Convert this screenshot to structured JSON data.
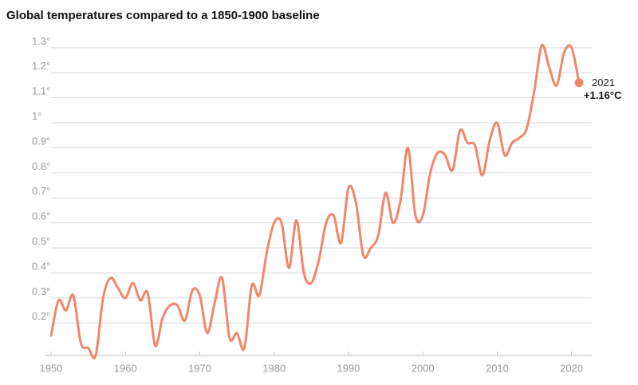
{
  "chart_data": {
    "type": "line",
    "title": "Global temperatures compared to a 1850-1900 baseline",
    "xlabel": "",
    "ylabel": "",
    "xlim": [
      1950,
      2021
    ],
    "ylim": [
      0.07,
      1.36
    ],
    "grid": true,
    "x_ticks": [
      {
        "value": 1950,
        "label": "1950"
      },
      {
        "value": 1960,
        "label": "1960"
      },
      {
        "value": 1970,
        "label": "1970"
      },
      {
        "value": 1980,
        "label": "1980"
      },
      {
        "value": 1990,
        "label": "1990"
      },
      {
        "value": 2000,
        "label": "2000"
      },
      {
        "value": 2010,
        "label": "2010"
      },
      {
        "value": 2020,
        "label": "2020"
      }
    ],
    "y_ticks": [
      {
        "value": 0.2,
        "label": "0.2°"
      },
      {
        "value": 0.3,
        "label": "0.3°"
      },
      {
        "value": 0.4,
        "label": "0.4°"
      },
      {
        "value": 0.5,
        "label": "0.5°"
      },
      {
        "value": 0.6,
        "label": "0.6°"
      },
      {
        "value": 0.7,
        "label": "0.7°"
      },
      {
        "value": 0.8,
        "label": "0.8°"
      },
      {
        "value": 0.9,
        "label": "0.9°"
      },
      {
        "value": 1.0,
        "label": "1°"
      },
      {
        "value": 1.1,
        "label": "1.1°"
      },
      {
        "value": 1.2,
        "label": "1.2°"
      },
      {
        "value": 1.3,
        "label": "1.3°"
      }
    ],
    "series": [
      {
        "color": "#f0876a",
        "x": [
          1950,
          1951,
          1952,
          1953,
          1954,
          1955,
          1956,
          1957,
          1958,
          1959,
          1960,
          1961,
          1962,
          1963,
          1964,
          1965,
          1966,
          1967,
          1968,
          1969,
          1970,
          1971,
          1972,
          1973,
          1974,
          1975,
          1976,
          1977,
          1978,
          1979,
          1980,
          1981,
          1982,
          1983,
          1984,
          1985,
          1986,
          1987,
          1988,
          1989,
          1990,
          1991,
          1992,
          1993,
          1994,
          1995,
          1996,
          1997,
          1998,
          1999,
          2000,
          2001,
          2002,
          2003,
          2004,
          2005,
          2006,
          2007,
          2008,
          2009,
          2010,
          2011,
          2012,
          2013,
          2014,
          2015,
          2016,
          2017,
          2018,
          2019,
          2020,
          2021
        ],
        "y": [
          0.15,
          0.29,
          0.25,
          0.31,
          0.12,
          0.1,
          0.07,
          0.3,
          0.38,
          0.34,
          0.3,
          0.36,
          0.29,
          0.32,
          0.11,
          0.22,
          0.27,
          0.27,
          0.21,
          0.33,
          0.31,
          0.16,
          0.28,
          0.38,
          0.14,
          0.16,
          0.1,
          0.35,
          0.31,
          0.48,
          0.6,
          0.6,
          0.42,
          0.61,
          0.4,
          0.36,
          0.45,
          0.6,
          0.63,
          0.52,
          0.74,
          0.68,
          0.47,
          0.5,
          0.55,
          0.72,
          0.6,
          0.69,
          0.9,
          0.63,
          0.63,
          0.8,
          0.88,
          0.87,
          0.81,
          0.97,
          0.92,
          0.91,
          0.79,
          0.93,
          1.0,
          0.87,
          0.92,
          0.94,
          0.98,
          1.13,
          1.31,
          1.22,
          1.15,
          1.28,
          1.3,
          1.16
        ]
      }
    ],
    "end_label": {
      "year": "2021",
      "value": "+1.16°C"
    },
    "endpoint": {
      "x": 2021,
      "y": 1.16
    }
  }
}
